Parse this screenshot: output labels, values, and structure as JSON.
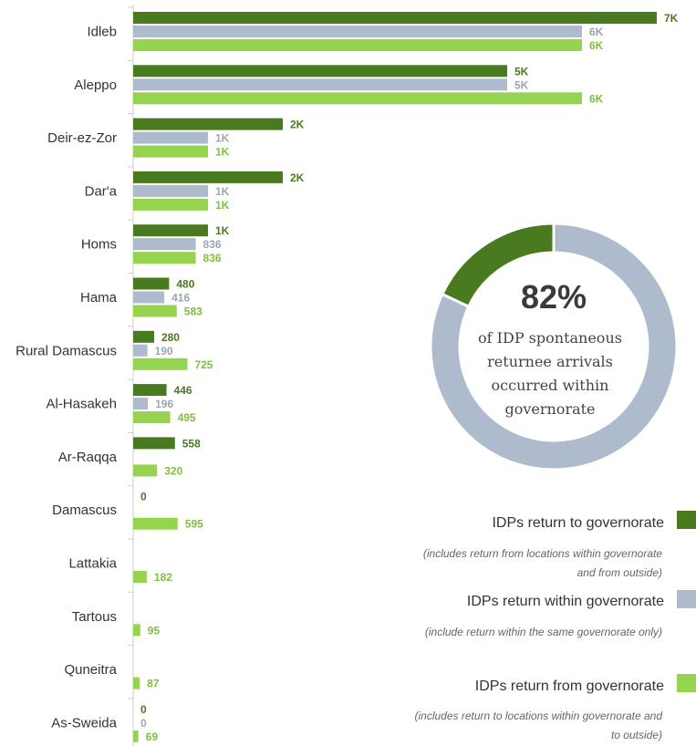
{
  "chart_data": {
    "type": "bar",
    "orientation": "horizontal",
    "categories": [
      "Idleb",
      "Aleppo",
      "Deir-ez-Zor",
      "Dar'a",
      "Homs",
      "Hama",
      "Rural Damascus",
      "Al-Hasakeh",
      "Ar-Raqqa",
      "Damascus",
      "Lattakia",
      "Tartous",
      "Quneitra",
      "As-Sweida"
    ],
    "series": [
      {
        "name": "IDPs return to governorate",
        "color": "#4a7a1f",
        "values": [
          7000,
          5000,
          2000,
          2000,
          1000,
          480,
          280,
          446,
          558,
          0,
          null,
          null,
          null,
          0
        ],
        "labels": [
          "7K",
          "5K",
          "2K",
          "2K",
          "1K",
          "480",
          "280",
          "446",
          "558",
          "0",
          "",
          "",
          "",
          "0"
        ]
      },
      {
        "name": "IDPs return within governorate",
        "color": "#aebbcc",
        "values": [
          6000,
          5000,
          1000,
          1000,
          836,
          416,
          190,
          196,
          null,
          null,
          null,
          null,
          null,
          0
        ],
        "labels": [
          "6K",
          "5K",
          "1K",
          "1K",
          "836",
          "416",
          "190",
          "196",
          "",
          "",
          "",
          "",
          "",
          "0"
        ]
      },
      {
        "name": "IDPs return from governorate",
        "color": "#96d34f",
        "values": [
          6000,
          6000,
          1000,
          1000,
          836,
          583,
          725,
          495,
          320,
          595,
          182,
          95,
          87,
          69
        ],
        "labels": [
          "6K",
          "6K",
          "1K",
          "1K",
          "836",
          "583",
          "725",
          "495",
          "320",
          "595",
          "182",
          "95",
          "87",
          "69"
        ]
      }
    ],
    "xlim": [
      0,
      7000
    ],
    "gridlines": false,
    "donut": {
      "value": 82,
      "value_text": "82%",
      "text_lines": [
        "of IDP spontaneous",
        "returnee arrivals",
        "occurred within",
        "governorate"
      ],
      "colors": {
        "main": "#aebbcc",
        "rest": "#4a7a1f"
      }
    },
    "legend": {
      "placement": "bottom-right",
      "items": [
        {
          "title": "IDPs return to governorate",
          "notes": [
            "(includes return from locations within governorate",
            "and from outside)"
          ],
          "color": "#4a7a1f"
        },
        {
          "title": "IDPs return within governorate",
          "notes": [
            "(include return within the same governorate only)"
          ],
          "color": "#aebbcc"
        },
        {
          "title": "IDPs return from governorate",
          "notes": [
            "(includes return to locations within governorate and",
            "to outside)"
          ],
          "color": "#96d34f"
        }
      ]
    }
  }
}
